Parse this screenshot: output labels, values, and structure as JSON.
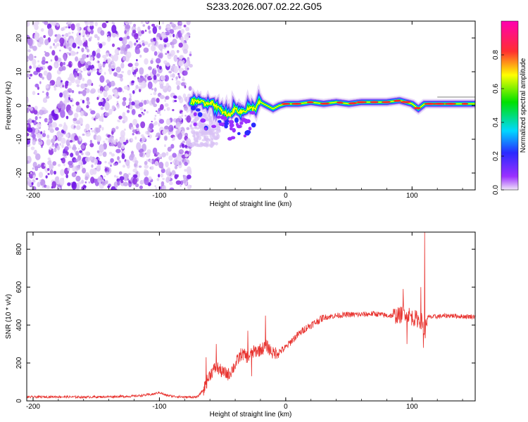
{
  "title": "S233.2026.007.02.22.G05",
  "colors": {
    "snr_line": "#e8332f",
    "spectrogram_scatter": "#8a2be2",
    "background": "#ffffff"
  },
  "chart_data": [
    {
      "type": "heatmap",
      "name": "spectrogram",
      "xlabel": "Height of straight line (km)",
      "ylabel": "Frequency (Hz)",
      "xlim": [
        -205,
        150
      ],
      "ylim": [
        -25,
        25
      ],
      "xticks": [
        -200,
        -100,
        0,
        100
      ],
      "yticks": [
        -20,
        -10,
        0,
        10,
        20
      ],
      "xtick_labels": [
        "-200",
        "-100",
        "0",
        "100"
      ],
      "ytick_labels": [
        "-20",
        "-10",
        "0",
        "10",
        "20"
      ],
      "noise_region_km": [
        -205,
        -75
      ],
      "signal_trace": {
        "x": [
          -75,
          -70,
          -65,
          -60,
          -55,
          -50,
          -45,
          -40,
          -35,
          -30,
          -25,
          -20,
          -15,
          -10,
          -5,
          0,
          10,
          20,
          30,
          40,
          50,
          60,
          70,
          80,
          90,
          95,
          100,
          105,
          110,
          120,
          130,
          140,
          150
        ],
        "y": [
          1,
          1.5,
          0.5,
          1,
          0,
          -2,
          -3,
          -1,
          -2,
          -1,
          -1,
          1,
          0,
          -1,
          0,
          0.5,
          0.5,
          1,
          0.5,
          1,
          0.5,
          1,
          1,
          1,
          1.5,
          1,
          0.5,
          -1,
          0.5,
          0.5,
          0.5,
          0.5,
          0.5
        ]
      },
      "colorbar": {
        "label": "Normalized spectral amplitude",
        "range": [
          0,
          1
        ],
        "ticks": [
          0.0,
          0.2,
          0.4,
          0.6,
          0.8
        ],
        "tick_labels": [
          "0.0",
          "0.2",
          "0.4",
          "0.6",
          "0.8"
        ],
        "colormap": "rainbow (purple-blue-cyan-green-yellow-red-magenta)"
      }
    },
    {
      "type": "line",
      "name": "snr",
      "xlabel": "Height of straight line (km)",
      "ylabel": "SNR (10 * v/v)",
      "xlim": [
        -205,
        150
      ],
      "ylim": [
        0,
        890
      ],
      "xticks": [
        -200,
        -100,
        0,
        100
      ],
      "yticks": [
        0,
        200,
        400,
        600,
        800
      ],
      "xtick_labels": [
        "-200",
        "-100",
        "0",
        "100"
      ],
      "ytick_labels": [
        "0",
        "200",
        "400",
        "600",
        "800"
      ],
      "series": [
        {
          "name": "SNR",
          "x": [
            -205,
            -180,
            -160,
            -140,
            -120,
            -105,
            -100,
            -95,
            -90,
            -80,
            -70,
            -65,
            -60,
            -55,
            -50,
            -45,
            -40,
            -35,
            -30,
            -25,
            -20,
            -15,
            -10,
            -5,
            0,
            5,
            10,
            15,
            20,
            25,
            30,
            40,
            50,
            60,
            70,
            80,
            90,
            95,
            100,
            105,
            108,
            110,
            112,
            120,
            130,
            140,
            150
          ],
          "y": [
            20,
            22,
            20,
            22,
            25,
            35,
            45,
            30,
            25,
            20,
            20,
            60,
            140,
            180,
            150,
            140,
            190,
            250,
            230,
            260,
            270,
            290,
            250,
            260,
            280,
            320,
            350,
            380,
            400,
            420,
            440,
            450,
            455,
            455,
            460,
            450,
            450,
            470,
            440,
            430,
            420,
            350,
            440,
            445,
            450,
            445,
            445
          ]
        }
      ],
      "spikes": [
        {
          "x": -63,
          "y": 230
        },
        {
          "x": -55,
          "y": 300
        },
        {
          "x": -30,
          "y": 370
        },
        {
          "x": -27,
          "y": 130
        },
        {
          "x": -16,
          "y": 450
        },
        {
          "x": 93,
          "y": 590
        },
        {
          "x": 96,
          "y": 300
        },
        {
          "x": 107,
          "y": 600
        },
        {
          "x": 109,
          "y": 280
        },
        {
          "x": 110,
          "y": 890
        }
      ]
    }
  ]
}
